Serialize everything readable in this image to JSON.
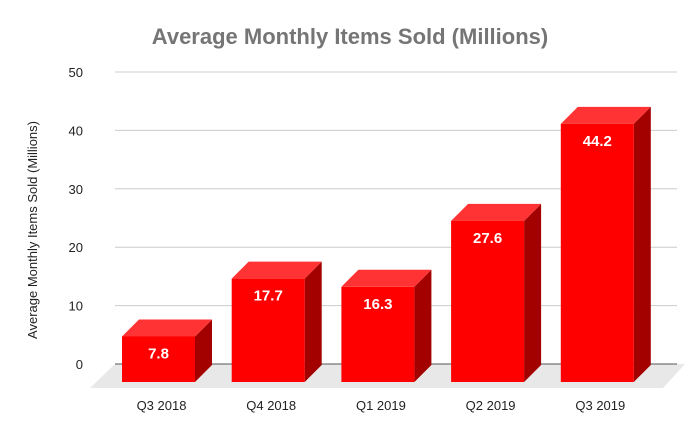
{
  "chart_data": {
    "type": "bar",
    "title": "Average Monthly Items Sold (Millions)",
    "xlabel": "",
    "ylabel": "Average Monthly Items Sold (Millions)",
    "categories": [
      "Q3 2018",
      "Q4 2018",
      "Q1 2019",
      "Q2 2019",
      "Q3 2019"
    ],
    "values": [
      7.8,
      17.7,
      16.3,
      27.6,
      44.2
    ],
    "data_labels": [
      "7.8",
      "17.7",
      "16.3",
      "27.6",
      "44.2"
    ],
    "ylim": [
      0,
      50
    ],
    "yticks": [
      "0",
      "10",
      "20",
      "30",
      "40",
      "50"
    ],
    "grid": true,
    "style": "3d",
    "colors": {
      "front": "#ff0000",
      "top": "#ff3333",
      "side": "#a30000",
      "floor": "#e8e8e8",
      "grid": "#cccccc"
    }
  }
}
